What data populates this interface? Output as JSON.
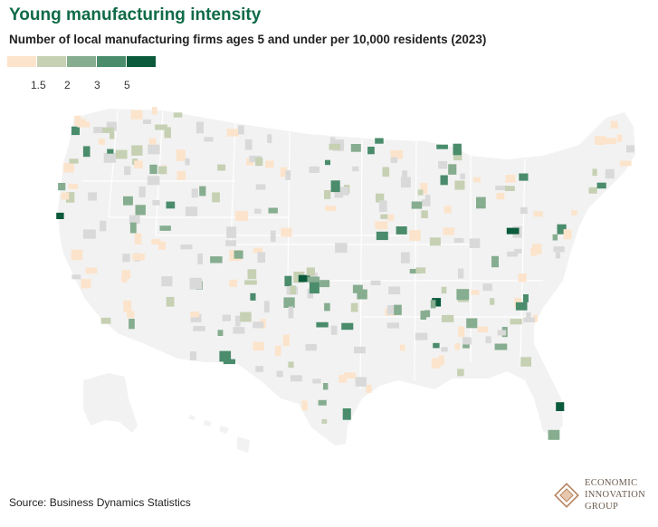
{
  "title": "Young manufacturing intensity",
  "subtitle": "Number of local manufacturing firms ages 5 and under per 10,000 residents (2023)",
  "legend": {
    "colors": [
      "#fce4cc",
      "#c6d0b3",
      "#86ad8f",
      "#4a8c6c",
      "#0b5a3c"
    ],
    "ticks": [
      "1.5",
      "2",
      "3",
      "5"
    ],
    "no_data_color": "#d9d9d9",
    "land_color": "#f2f2f2"
  },
  "source": "Source: Business Dynamics Statistics",
  "logo": {
    "lines": [
      "ECONOMIC",
      "INNOVATION",
      "GROUP"
    ],
    "color": "#b8825f"
  }
}
